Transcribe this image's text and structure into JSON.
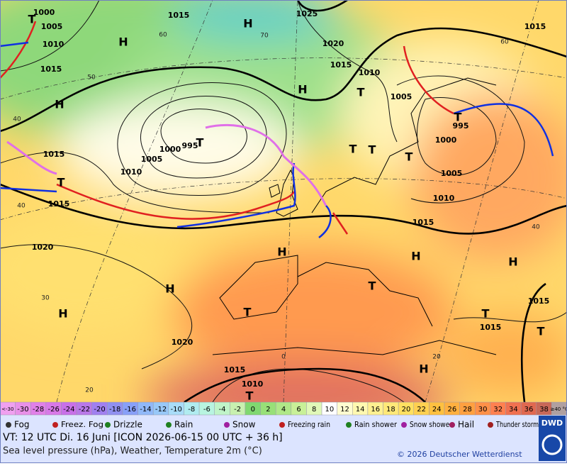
{
  "map": {
    "isobar_labels": [
      "1000",
      "1005",
      "1010",
      "1015",
      "1015",
      "1025",
      "1020",
      "1015",
      "1010",
      "1005",
      "995",
      "1000",
      "1005",
      "1010",
      "1015",
      "1015",
      "995",
      "1000",
      "1005",
      "1010",
      "1015",
      "1015",
      "1020",
      "1020",
      "1015",
      "1010",
      "1015",
      "1015"
    ],
    "centers": [
      "H",
      "H",
      "H",
      "H",
      "H",
      "H",
      "H",
      "H",
      "H",
      "H",
      "T",
      "T",
      "T",
      "T",
      "T",
      "T",
      "T",
      "T",
      "T",
      "T",
      "T",
      "T",
      "T"
    ],
    "grid_labels": [
      "60",
      "50",
      "40",
      "40",
      "30",
      "20",
      "70",
      "60",
      "40",
      "20",
      "0"
    ]
  },
  "scale": {
    "labels": [
      "<-30",
      "-30",
      "-28",
      "-26",
      "-24",
      "-22",
      "-20",
      "-18",
      "-16",
      "-14",
      "-12",
      "-10",
      "-8",
      "-6",
      "-4",
      "-2",
      "0",
      "2",
      "4",
      "6",
      "8",
      "10",
      "12",
      "14",
      "16",
      "18",
      "20",
      "22",
      "24",
      "26",
      "28",
      "30",
      "32",
      "34",
      "36",
      "38",
      "≥40 °C"
    ],
    "colors": [
      "#f0a0f0",
      "#e890e8",
      "#e080e8",
      "#d878e8",
      "#c870e8",
      "#b878e8",
      "#a080f0",
      "#9090f0",
      "#88a0f8",
      "#90b8f8",
      "#98c8f8",
      "#a8dcf8",
      "#b0ecf0",
      "#b8f4e0",
      "#c0f4c8",
      "#c8f0b0",
      "#80d870",
      "#98e078",
      "#b0e888",
      "#c8f098",
      "#e0f8b8",
      "#ffffff",
      "#fffcd0",
      "#fff8b0",
      "#fff090",
      "#ffe878",
      "#ffe060",
      "#ffd050",
      "#ffc040",
      "#ffb040",
      "#ffa040",
      "#ff9048",
      "#ff8050",
      "#f07050",
      "#e06850",
      "#c86858",
      "#b0a0a0"
    ]
  },
  "legend": [
    "Fog",
    "Freez. Fog",
    "Drizzle",
    "Rain",
    "Snow",
    "Freezing rain",
    "Rain shower",
    "Snow shower",
    "Hail",
    "Thunder storm"
  ],
  "footer": {
    "valid_time": "VT: 12 UTC Di.  16 Juni [ICON 2026-06-15  00 UTC + 36 h]",
    "description": "Sea level pressure (hPa), Weather, Temperature 2m (°C)",
    "copyright": "© 2026 Deutscher Wetterdienst",
    "logo": "DWD"
  }
}
